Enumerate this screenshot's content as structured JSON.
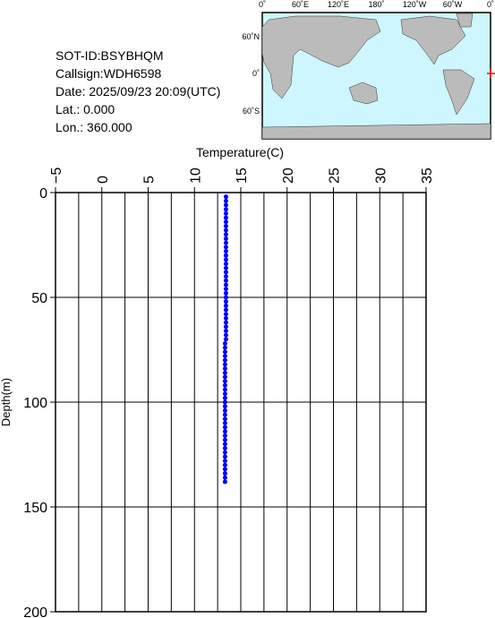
{
  "chart_data": {
    "type": "scatter",
    "info": [
      "SOT-ID:BSYBHQM",
      "Callsign:WDH6598",
      "Date:  2025/09/23 20:09(UTC)",
      "Lat.:   0.000",
      "Lon.:  360.000"
    ],
    "map_lon_labels": [
      "0˚",
      "60˚E",
      "120˚E",
      "180˚",
      "120˚W",
      "60˚W",
      "0˚"
    ],
    "map_lat_labels": [
      "60˚N",
      "0˚",
      "60˚S"
    ],
    "x_label": "Temperature(C)",
    "y_label": "Depth(m)",
    "xlim": [
      -5,
      35
    ],
    "xticks": [
      {
        "value": -5,
        "label": "−5"
      },
      0,
      5,
      10,
      15,
      20,
      25,
      30,
      35
    ],
    "xgrid": [
      -5,
      -2.5,
      0,
      2.5,
      5,
      7.5,
      10,
      12.5,
      15,
      17.5,
      20,
      22.5,
      25,
      27.5,
      30,
      32.5,
      35
    ],
    "ylim": [
      0,
      200
    ],
    "yticks": [
      0,
      50,
      100,
      150,
      200
    ],
    "y_inverted": true,
    "grid": true,
    "color": "#0000ff",
    "x": [
      13.4,
      13.4,
      13.4,
      13.4,
      13.4,
      13.4,
      13.4,
      13.4,
      13.4,
      13.4,
      13.4,
      13.4,
      13.4,
      13.4,
      13.4,
      13.4,
      13.4,
      13.4,
      13.4,
      13.4,
      13.4,
      13.4,
      13.4,
      13.4,
      13.4,
      13.4,
      13.4,
      13.4,
      13.4,
      13.4,
      13.4,
      13.4,
      13.4,
      13.4,
      13.4,
      13.3,
      13.3,
      13.3,
      13.3,
      13.3,
      13.3,
      13.3,
      13.3,
      13.3,
      13.3,
      13.3,
      13.3,
      13.3,
      13.3,
      13.3,
      13.3,
      13.3,
      13.3,
      13.3,
      13.3,
      13.3,
      13.3,
      13.3,
      13.3,
      13.3,
      13.3,
      13.3,
      13.3,
      13.3,
      13.3,
      13.3,
      13.3,
      13.3,
      13.3
    ],
    "values": [
      2,
      4,
      6,
      8,
      10,
      12,
      14,
      16,
      18,
      20,
      22,
      24,
      26,
      28,
      30,
      32,
      34,
      36,
      38,
      40,
      42,
      44,
      46,
      48,
      50,
      52,
      54,
      56,
      58,
      60,
      62,
      64,
      66,
      68,
      70,
      72,
      74,
      76,
      78,
      80,
      82,
      84,
      86,
      88,
      90,
      92,
      94,
      96,
      98,
      100,
      102,
      104,
      106,
      108,
      110,
      112,
      114,
      116,
      118,
      120,
      122,
      124,
      126,
      128,
      130,
      132,
      134,
      136,
      138
    ]
  }
}
